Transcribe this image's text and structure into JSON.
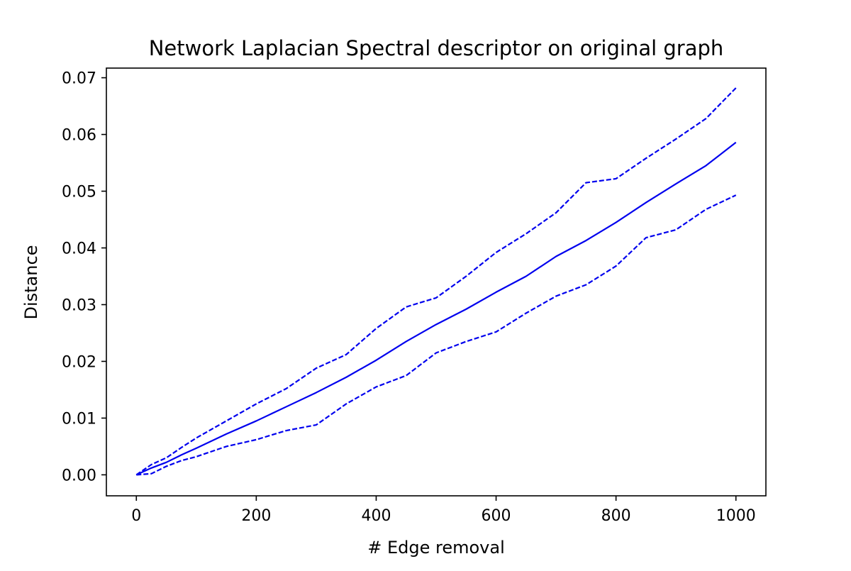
{
  "chart_data": {
    "type": "line",
    "title": "Network Laplacian Spectral descriptor on original graph",
    "xlabel": "# Edge removal",
    "ylabel": "Distance",
    "xlim": [
      -50,
      1050
    ],
    "ylim": [
      -0.0037,
      0.0717
    ],
    "xticks": [
      0,
      200,
      400,
      600,
      800,
      1000
    ],
    "xtick_labels": [
      "0",
      "200",
      "400",
      "600",
      "800",
      "1000"
    ],
    "yticks": [
      0.0,
      0.01,
      0.02,
      0.03,
      0.04,
      0.05,
      0.06,
      0.07
    ],
    "ytick_labels": [
      "0.00",
      "0.01",
      "0.02",
      "0.03",
      "0.04",
      "0.05",
      "0.06",
      "0.07"
    ],
    "grid": false,
    "legend": "none",
    "colors": {
      "series": "#0000ee"
    },
    "x": [
      0,
      25,
      50,
      75,
      100,
      150,
      200,
      250,
      300,
      350,
      400,
      450,
      500,
      550,
      600,
      650,
      700,
      750,
      800,
      850,
      900,
      950,
      1000
    ],
    "series": [
      {
        "style": "solid",
        "values": [
          0.0,
          0.0012,
          0.0022,
          0.0035,
          0.0047,
          0.0072,
          0.0095,
          0.012,
          0.0145,
          0.0172,
          0.0202,
          0.0235,
          0.0265,
          0.0292,
          0.0322,
          0.035,
          0.0385,
          0.0413,
          0.0445,
          0.048,
          0.0513,
          0.0545,
          0.0586
        ]
      },
      {
        "style": "dashed",
        "values": [
          0.0,
          0.0018,
          0.003,
          0.0048,
          0.0065,
          0.0095,
          0.0125,
          0.0152,
          0.0188,
          0.0212,
          0.0258,
          0.0296,
          0.0312,
          0.035,
          0.0392,
          0.0425,
          0.0462,
          0.0515,
          0.0522,
          0.0558,
          0.0592,
          0.0628,
          0.0682
        ]
      },
      {
        "style": "dashed",
        "values": [
          0.0,
          0.0002,
          0.0015,
          0.0025,
          0.0032,
          0.005,
          0.0062,
          0.0078,
          0.0088,
          0.0125,
          0.0155,
          0.0175,
          0.0215,
          0.0235,
          0.0252,
          0.0285,
          0.0315,
          0.0335,
          0.0368,
          0.0418,
          0.0432,
          0.0468,
          0.0493
        ]
      }
    ]
  }
}
